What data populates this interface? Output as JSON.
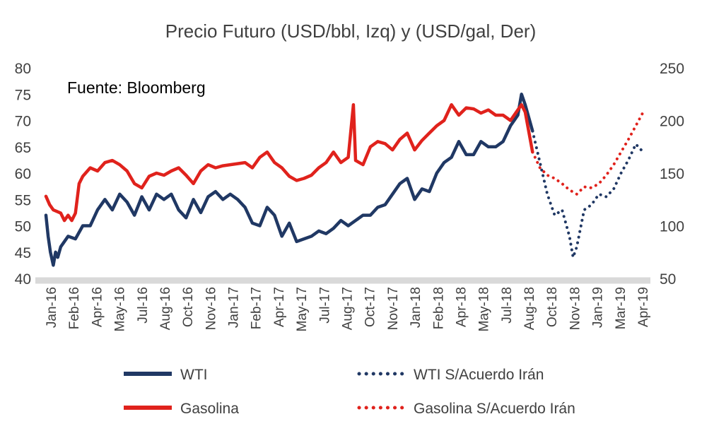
{
  "chart_data": {
    "type": "line",
    "title": "Precio Futuro  (USD/bbl, Izq) y (USD/gal, Der)",
    "annotation": "Fuente:  Bloomberg",
    "y_left": {
      "min": 40,
      "max": 80,
      "step": 5,
      "ticks": [
        "80",
        "75",
        "70",
        "65",
        "60",
        "55",
        "50",
        "45",
        "40"
      ]
    },
    "y_right": {
      "min": 50,
      "max": 250,
      "step": 50,
      "ticks": [
        "250",
        "200",
        "150",
        "100",
        "50"
      ]
    },
    "x_tick_labels": [
      "Jan-16",
      "Feb-16",
      "Apr-16",
      "May-16",
      "Jul-16",
      "Aug-16",
      "Oct-16",
      "Nov-16",
      "Jan-17",
      "Feb-17",
      "Apr-17",
      "May-17",
      "Jul-17",
      "Aug-17",
      "Oct-17",
      "Nov-17",
      "Jan-18",
      "Feb-18",
      "Apr-18",
      "May-18",
      "Jul-18",
      "Aug-18",
      "Oct-18",
      "Nov-18",
      "Jan-19",
      "Mar-19",
      "Apr-19"
    ],
    "series": [
      {
        "name": "WTI",
        "axis": "left",
        "style": "solid",
        "color": "#203864",
        "points": [
          [
            0,
            52
          ],
          [
            0.3,
            48
          ],
          [
            0.6,
            45
          ],
          [
            1,
            42.5
          ],
          [
            1.3,
            45
          ],
          [
            1.6,
            44
          ],
          [
            2,
            46
          ],
          [
            3,
            48
          ],
          [
            4,
            47.5
          ],
          [
            5,
            50
          ],
          [
            6,
            50
          ],
          [
            7,
            53
          ],
          [
            8,
            55
          ],
          [
            9,
            53
          ],
          [
            10,
            56
          ],
          [
            11,
            54.5
          ],
          [
            12,
            52
          ],
          [
            13,
            55.5
          ],
          [
            14,
            53
          ],
          [
            15,
            56
          ],
          [
            16,
            55
          ],
          [
            17,
            56
          ],
          [
            18,
            53
          ],
          [
            19,
            51.5
          ],
          [
            20,
            55
          ],
          [
            21,
            52.5
          ],
          [
            22,
            55.5
          ],
          [
            23,
            56.5
          ],
          [
            24,
            55
          ],
          [
            25,
            56
          ],
          [
            26,
            55
          ],
          [
            27,
            53.5
          ],
          [
            28,
            50.5
          ],
          [
            29,
            50
          ],
          [
            30,
            53.5
          ],
          [
            31,
            52
          ],
          [
            32,
            48
          ],
          [
            33,
            50.5
          ],
          [
            34,
            47
          ],
          [
            35,
            47.5
          ],
          [
            36,
            48
          ],
          [
            37,
            49
          ],
          [
            38,
            48.5
          ],
          [
            39,
            49.5
          ],
          [
            40,
            51
          ],
          [
            41,
            50
          ],
          [
            42,
            51
          ],
          [
            43,
            52
          ],
          [
            44,
            52
          ],
          [
            45,
            53.5
          ],
          [
            46,
            54
          ],
          [
            47,
            56
          ],
          [
            48,
            58
          ],
          [
            49,
            59
          ],
          [
            50,
            55
          ],
          [
            51,
            57
          ],
          [
            52,
            56.5
          ],
          [
            53,
            60
          ],
          [
            54,
            62
          ],
          [
            55,
            63
          ],
          [
            56,
            66
          ],
          [
            57,
            63.5
          ],
          [
            58,
            63.5
          ],
          [
            59,
            66
          ],
          [
            60,
            65
          ],
          [
            61,
            65
          ],
          [
            62,
            66
          ],
          [
            63,
            69
          ],
          [
            64,
            71
          ],
          [
            64.5,
            75
          ],
          [
            65,
            73
          ],
          [
            66,
            68
          ]
        ]
      },
      {
        "name": "WTI S/Acuerdo Irán",
        "axis": "left",
        "style": "dotted",
        "color": "#203864",
        "points": [
          [
            66,
            68
          ],
          [
            67,
            62
          ],
          [
            68,
            56
          ],
          [
            69,
            52
          ],
          [
            70,
            53
          ],
          [
            71,
            48
          ],
          [
            71.5,
            44
          ],
          [
            72,
            46
          ],
          [
            73,
            53
          ],
          [
            74,
            54
          ],
          [
            75,
            56
          ],
          [
            76,
            55.5
          ],
          [
            77,
            57
          ],
          [
            78,
            60
          ],
          [
            79,
            62.5
          ],
          [
            80,
            65.5
          ],
          [
            81,
            64
          ]
        ]
      },
      {
        "name": "Gasolina",
        "axis": "right",
        "style": "solid",
        "color": "#e0221c",
        "points": [
          [
            0,
            128
          ],
          [
            0.5,
            120
          ],
          [
            1,
            115
          ],
          [
            2,
            112
          ],
          [
            2.5,
            105
          ],
          [
            3,
            110
          ],
          [
            3.5,
            105
          ],
          [
            4,
            112
          ],
          [
            4.5,
            140
          ],
          [
            5,
            147
          ],
          [
            6,
            155
          ],
          [
            7,
            152
          ],
          [
            8,
            160
          ],
          [
            9,
            162
          ],
          [
            10,
            158
          ],
          [
            11,
            152
          ],
          [
            12,
            140
          ],
          [
            13,
            136
          ],
          [
            14,
            147
          ],
          [
            15,
            150
          ],
          [
            16,
            148
          ],
          [
            17,
            152
          ],
          [
            18,
            155
          ],
          [
            19,
            148
          ],
          [
            20,
            140
          ],
          [
            21,
            152
          ],
          [
            22,
            158
          ],
          [
            23,
            155
          ],
          [
            24,
            157
          ],
          [
            25,
            158
          ],
          [
            26,
            159
          ],
          [
            27,
            160
          ],
          [
            28,
            155
          ],
          [
            29,
            165
          ],
          [
            30,
            170
          ],
          [
            31,
            160
          ],
          [
            32,
            155
          ],
          [
            33,
            147
          ],
          [
            34,
            143
          ],
          [
            35,
            145
          ],
          [
            36,
            148
          ],
          [
            37,
            155
          ],
          [
            38,
            160
          ],
          [
            39,
            170
          ],
          [
            40,
            160
          ],
          [
            41,
            165
          ],
          [
            41.7,
            215
          ],
          [
            42,
            162
          ],
          [
            43,
            158
          ],
          [
            44,
            175
          ],
          [
            45,
            180
          ],
          [
            46,
            178
          ],
          [
            47,
            172
          ],
          [
            48,
            182
          ],
          [
            49,
            188
          ],
          [
            50,
            172
          ],
          [
            51,
            181
          ],
          [
            52,
            188
          ],
          [
            53,
            195
          ],
          [
            54,
            200
          ],
          [
            55,
            215
          ],
          [
            56,
            205
          ],
          [
            57,
            212
          ],
          [
            58,
            211
          ],
          [
            59,
            207
          ],
          [
            60,
            210
          ],
          [
            61,
            205
          ],
          [
            62,
            205
          ],
          [
            63,
            200
          ],
          [
            64,
            210
          ],
          [
            64.5,
            215
          ],
          [
            65,
            208
          ],
          [
            66,
            170
          ]
        ]
      },
      {
        "name": "Gasolina S/Acuerdo Irán",
        "axis": "right",
        "style": "dotted",
        "color": "#e0221c",
        "points": [
          [
            66,
            170
          ],
          [
            67,
            155
          ],
          [
            68,
            148
          ],
          [
            69,
            145
          ],
          [
            70,
            140
          ],
          [
            71,
            134
          ],
          [
            72,
            130
          ],
          [
            73,
            137
          ],
          [
            74,
            136
          ],
          [
            75,
            140
          ],
          [
            76,
            148
          ],
          [
            77,
            158
          ],
          [
            78,
            170
          ],
          [
            79,
            182
          ],
          [
            80,
            195
          ],
          [
            81,
            208
          ]
        ]
      }
    ],
    "legend": [
      {
        "name": "WTI",
        "style": "solid",
        "color": "#203864"
      },
      {
        "name": "WTI S/Acuerdo Irán",
        "style": "dotted",
        "color": "#203864"
      },
      {
        "name": "Gasolina",
        "style": "solid",
        "color": "#e0221c"
      },
      {
        "name": "Gasolina S/Acuerdo Irán",
        "style": "dotted",
        "color": "#e0221c"
      }
    ]
  }
}
